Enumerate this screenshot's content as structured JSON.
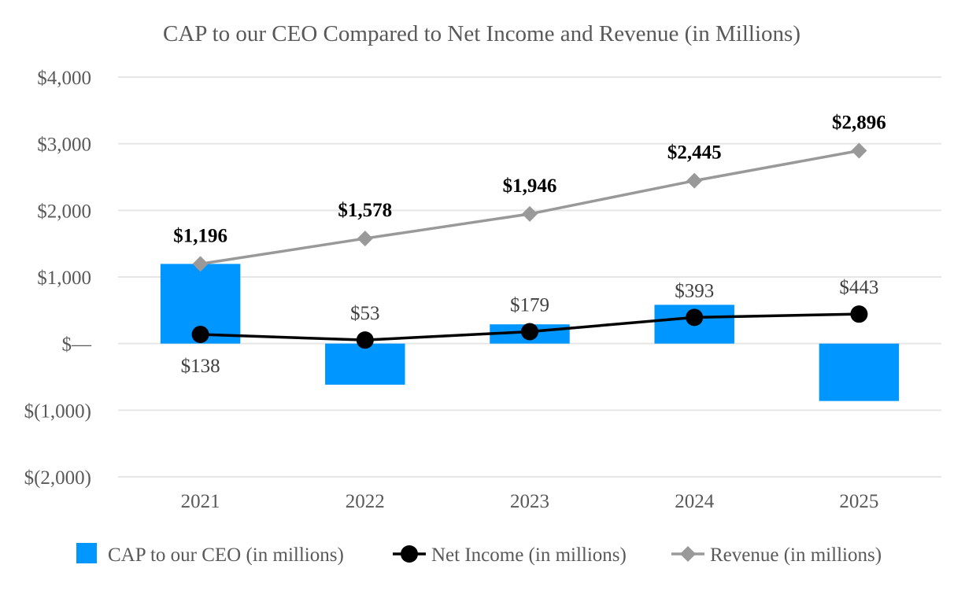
{
  "chart_data": {
    "type": "bar",
    "title": "CAP to our CEO Compared to Net Income and Revenue (in Millions)",
    "categories": [
      "2021",
      "2022",
      "2023",
      "2024",
      "2025"
    ],
    "ylim": [
      -2000,
      4000
    ],
    "yticks": [
      4000,
      3000,
      2000,
      1000,
      0,
      -1000,
      -2000
    ],
    "ytick_labels": [
      "$4,000",
      "$3,000",
      "$2,000",
      "$1,000",
      "$—",
      "$(1,000)",
      "$(2,000)"
    ],
    "grid": true,
    "legend_position": "bottom",
    "series": [
      {
        "name": "CAP to our CEO (in millions)",
        "type": "bar",
        "color": "#0096FF",
        "values": [
          1196,
          -617,
          289,
          582,
          -862
        ]
      },
      {
        "name": "Net Income (in millions)",
        "type": "line",
        "marker": "circle",
        "color": "#000000",
        "values": [
          138,
          53,
          179,
          393,
          443
        ],
        "labels": [
          "$138",
          "$53",
          "$179",
          "$393",
          "$443"
        ]
      },
      {
        "name": "Revenue (in millions)",
        "type": "line",
        "marker": "diamond",
        "color": "#999999",
        "values": [
          1196,
          1578,
          1946,
          2445,
          2896
        ],
        "labels": [
          "$1,196",
          "$1,578",
          "$1,946",
          "$2,445",
          "$2,896"
        ]
      }
    ]
  }
}
